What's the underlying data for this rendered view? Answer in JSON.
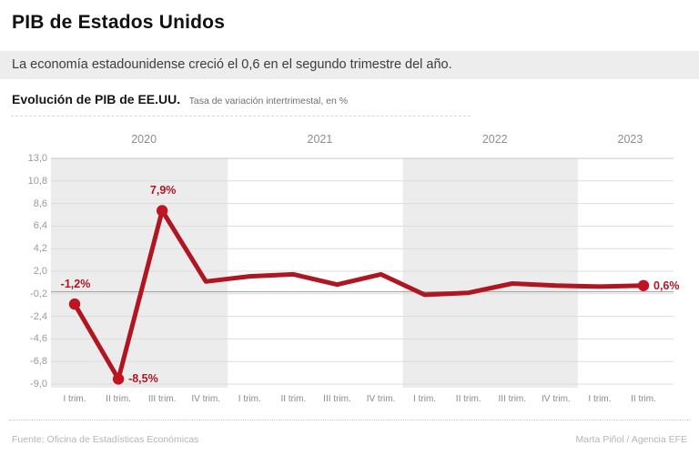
{
  "header": {
    "title": "PIB de Estados Unidos",
    "subtitle": "La economía estadounidense creció el 0,6 en el segundo trimestre del año."
  },
  "chart_header": {
    "heading": "Evolución de PIB de EE.UU.",
    "subheading": "Tasa de variación intertrimestal, en %"
  },
  "chart_data": {
    "type": "line",
    "title": "Evolución de PIB de EE.UU.",
    "ylabel": "Tasa de variación intertrimestal, en %",
    "unit": "%",
    "years": [
      {
        "label": "2020",
        "quarters": [
          "I trim.",
          "II trim.",
          "III trim.",
          "IV trim."
        ],
        "shaded": true
      },
      {
        "label": "2021",
        "quarters": [
          "I trim.",
          "II trim.",
          "III trim.",
          "IV trim."
        ],
        "shaded": false
      },
      {
        "label": "2022",
        "quarters": [
          "I trim.",
          "II trim.",
          "III trim.",
          "IV trim."
        ],
        "shaded": true
      },
      {
        "label": "2023",
        "quarters": [
          "I trim.",
          "II trim."
        ],
        "shaded": false
      }
    ],
    "values": [
      -1.2,
      -8.5,
      7.9,
      1.0,
      1.5,
      1.7,
      0.7,
      1.7,
      -0.3,
      -0.1,
      0.8,
      0.6,
      0.5,
      0.6
    ],
    "point_labels": [
      {
        "index": 0,
        "text": "-1,2%",
        "position": "above"
      },
      {
        "index": 1,
        "text": "-8,5%",
        "position": "right"
      },
      {
        "index": 2,
        "text": "7,9%",
        "position": "above"
      },
      {
        "index": 13,
        "text": "0,6%",
        "position": "right"
      }
    ],
    "y_ticks": [
      "13,0",
      "10,8",
      "8,6",
      "6,4",
      "4,2",
      "2,0",
      "-0,2",
      "-2,4",
      "-4,6",
      "-6,8",
      "-9,0"
    ],
    "y_tick_values": [
      13.0,
      10.8,
      8.6,
      6.4,
      4.2,
      2.0,
      -0.2,
      -2.4,
      -4.6,
      -6.8,
      -9.0
    ],
    "ylim": [
      -9.0,
      13.0
    ],
    "grid": true,
    "zero_line": true,
    "legend": "none",
    "colors": {
      "line": "#b01622",
      "dot": "#c01423",
      "point_label": "#b01622",
      "band": "#ececec",
      "grid": "#dcdcdc",
      "grid_top": "#c9c9c9",
      "zero": "#a8a8a8"
    }
  },
  "footer": {
    "source": "Fuente: Oficina de Estadísticas Económicas",
    "credit": "Marta Piñol / Agencia EFE"
  }
}
